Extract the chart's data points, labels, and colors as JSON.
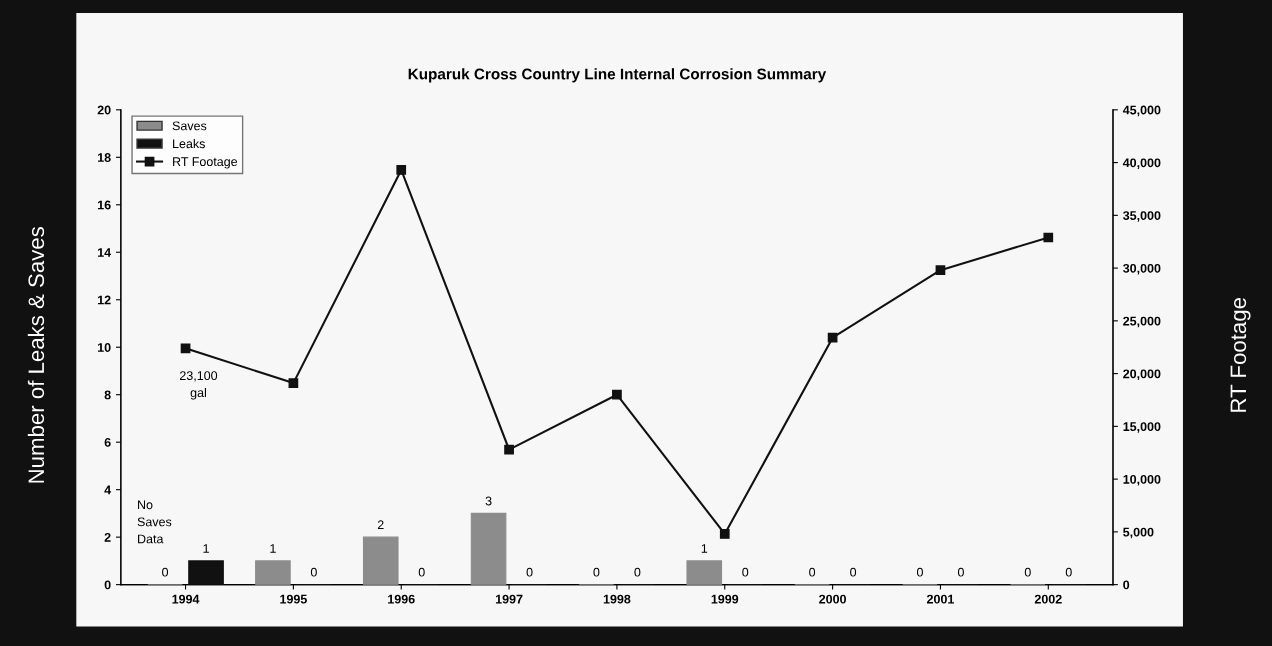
{
  "chart_data": {
    "type": "bar",
    "title": "Kuparuk Cross Country Line Internal Corrosion Summary",
    "categories": [
      "1994",
      "1995",
      "1996",
      "1997",
      "1998",
      "1999",
      "2000",
      "2001",
      "2002"
    ],
    "series": [
      {
        "name": "Saves",
        "color": "#8c8c8c",
        "values": [
          0,
          1,
          2,
          3,
          0,
          1,
          0,
          0,
          0
        ],
        "value_labels": [
          "0",
          "1",
          "2",
          "3",
          "0",
          "1",
          "0",
          "0",
          "0"
        ]
      },
      {
        "name": "Leaks",
        "color": "#111111",
        "values": [
          1,
          0,
          0,
          0,
          0,
          0,
          0,
          0,
          0
        ],
        "value_labels": [
          "1",
          "0",
          "0",
          "0",
          "0",
          "0",
          "0",
          "0",
          "0"
        ]
      },
      {
        "name": "RT Footage",
        "type": "line",
        "axis": "y2",
        "color": "#111111",
        "values": [
          22400,
          19100,
          39300,
          12800,
          18000,
          4800,
          23400,
          29800,
          32900
        ]
      }
    ],
    "ylabel": "Number of Leaks & Saves",
    "y2label": "RT Footage",
    "ylim": [
      0,
      20
    ],
    "yticks": [
      0,
      2,
      4,
      6,
      8,
      10,
      12,
      14,
      16,
      18,
      20
    ],
    "y2lim": [
      0,
      45000
    ],
    "y2ticks": [
      {
        "value": 0,
        "label": "0"
      },
      {
        "value": 5000,
        "label": "5,000"
      },
      {
        "value": 10000,
        "label": "10,000"
      },
      {
        "value": 15000,
        "label": "15,000"
      },
      {
        "value": 20000,
        "label": "20,000"
      },
      {
        "value": 25000,
        "label": "25,000"
      },
      {
        "value": 30000,
        "label": "30,000"
      },
      {
        "value": 35000,
        "label": "35,000"
      },
      {
        "value": 40000,
        "label": "40,000"
      },
      {
        "value": 45000,
        "label": "45,000"
      }
    ],
    "annotations": [
      "23,100\ngal",
      "No\nSaves\nData"
    ],
    "legend": "top left",
    "marker": "square",
    "grid": false
  }
}
